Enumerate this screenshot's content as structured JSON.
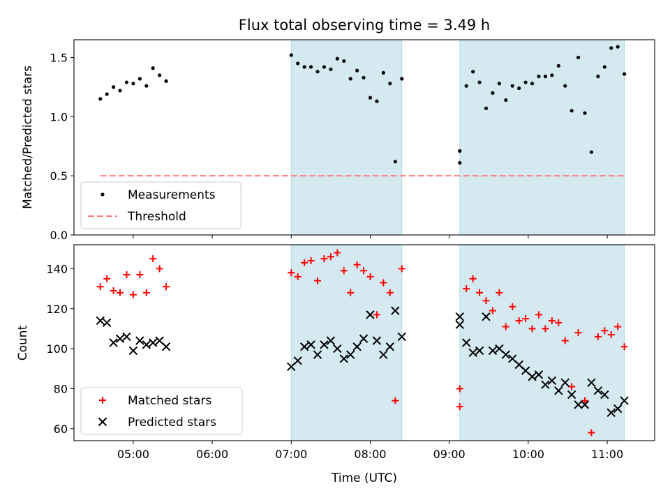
{
  "figure": {
    "title": "Flux total observing time = 3.49 h",
    "xlabel": "Time (UTC)",
    "x_ticks": [
      "05:00",
      "06:00",
      "07:00",
      "08:00",
      "09:00",
      "10:00",
      "11:00"
    ],
    "shaded_intervals": [
      [
        "07:00",
        "08:24"
      ],
      [
        "09:08",
        "11:13"
      ]
    ],
    "shade_color": "#d4eaf0"
  },
  "chart_data": [
    {
      "type": "scatter",
      "ylabel": "Matched/Predicted stars",
      "ylim": [
        0,
        1.65
      ],
      "y_ticks": [
        "0.0",
        "0.5",
        "1.0",
        "1.5"
      ],
      "legend": {
        "position": "lower-left",
        "entries": [
          {
            "label": "Measurements",
            "marker": "dot",
            "color": "#000000"
          },
          {
            "label": "Threshold",
            "marker": "dashed-line",
            "color": "#ff7f7f"
          }
        ]
      },
      "threshold": {
        "value": 0.5,
        "x_range": [
          "04:35",
          "11:13"
        ],
        "color": "#ff7f7f"
      },
      "series": [
        {
          "name": "Measurements",
          "color": "#000000",
          "points": [
            [
              "04:35",
              1.15
            ],
            [
              "04:40",
              1.19
            ],
            [
              "04:45",
              1.25
            ],
            [
              "04:50",
              1.22
            ],
            [
              "04:55",
              1.29
            ],
            [
              "05:00",
              1.28
            ],
            [
              "05:05",
              1.32
            ],
            [
              "05:10",
              1.26
            ],
            [
              "05:15",
              1.41
            ],
            [
              "05:20",
              1.35
            ],
            [
              "05:25",
              1.3
            ],
            [
              "07:00",
              1.52
            ],
            [
              "07:05",
              1.45
            ],
            [
              "07:10",
              1.42
            ],
            [
              "07:15",
              1.42
            ],
            [
              "07:20",
              1.38
            ],
            [
              "07:25",
              1.42
            ],
            [
              "07:30",
              1.4
            ],
            [
              "07:35",
              1.49
            ],
            [
              "07:40",
              1.47
            ],
            [
              "07:45",
              1.32
            ],
            [
              "07:50",
              1.39
            ],
            [
              "07:55",
              1.33
            ],
            [
              "08:00",
              1.16
            ],
            [
              "08:05",
              1.13
            ],
            [
              "08:10",
              1.37
            ],
            [
              "08:15",
              1.28
            ],
            [
              "08:19",
              0.62
            ],
            [
              "08:24",
              1.32
            ],
            [
              "09:08",
              0.71
            ],
            [
              "09:08",
              0.61
            ],
            [
              "09:13",
              1.26
            ],
            [
              "09:18",
              1.38
            ],
            [
              "09:23",
              1.29
            ],
            [
              "09:28",
              1.07
            ],
            [
              "09:33",
              1.2
            ],
            [
              "09:38",
              1.28
            ],
            [
              "09:43",
              1.14
            ],
            [
              "09:48",
              1.26
            ],
            [
              "09:53",
              1.24
            ],
            [
              "09:58",
              1.29
            ],
            [
              "10:03",
              1.28
            ],
            [
              "10:08",
              1.34
            ],
            [
              "10:13",
              1.34
            ],
            [
              "10:18",
              1.35
            ],
            [
              "10:23",
              1.43
            ],
            [
              "10:28",
              1.26
            ],
            [
              "10:33",
              1.05
            ],
            [
              "10:38",
              1.5
            ],
            [
              "10:43",
              1.03
            ],
            [
              "10:48",
              0.7
            ],
            [
              "10:53",
              1.34
            ],
            [
              "10:58",
              1.42
            ],
            [
              "11:03",
              1.58
            ],
            [
              "11:08",
              1.59
            ],
            [
              "11:13",
              1.36
            ]
          ]
        }
      ]
    },
    {
      "type": "scatter",
      "ylabel": "Count",
      "ylim": [
        54,
        152
      ],
      "y_ticks": [
        "60",
        "80",
        "100",
        "120",
        "140"
      ],
      "legend": {
        "position": "lower-left",
        "entries": [
          {
            "label": "Matched stars",
            "marker": "plus",
            "color": "#ff0000"
          },
          {
            "label": "Predicted stars",
            "marker": "x",
            "color": "#000000"
          }
        ]
      },
      "series": [
        {
          "name": "Matched stars",
          "marker": "plus",
          "color": "#ff0000",
          "points": [
            [
              "04:35",
              131
            ],
            [
              "04:40",
              135
            ],
            [
              "04:45",
              129
            ],
            [
              "04:50",
              128
            ],
            [
              "04:55",
              137
            ],
            [
              "05:00",
              127
            ],
            [
              "05:05",
              137
            ],
            [
              "05:10",
              128
            ],
            [
              "05:15",
              145
            ],
            [
              "05:20",
              140
            ],
            [
              "05:25",
              131
            ],
            [
              "07:00",
              138
            ],
            [
              "07:05",
              136
            ],
            [
              "07:10",
              143
            ],
            [
              "07:15",
              144
            ],
            [
              "07:20",
              134
            ],
            [
              "07:25",
              145
            ],
            [
              "07:30",
              146
            ],
            [
              "07:35",
              148
            ],
            [
              "07:40",
              139
            ],
            [
              "07:45",
              128
            ],
            [
              "07:50",
              142
            ],
            [
              "07:55",
              139
            ],
            [
              "08:00",
              136
            ],
            [
              "08:05",
              117
            ],
            [
              "08:10",
              133
            ],
            [
              "08:15",
              128
            ],
            [
              "08:19",
              74
            ],
            [
              "08:24",
              140
            ],
            [
              "09:08",
              80
            ],
            [
              "09:08",
              71
            ],
            [
              "09:13",
              130
            ],
            [
              "09:18",
              135
            ],
            [
              "09:23",
              128
            ],
            [
              "09:28",
              124
            ],
            [
              "09:33",
              119
            ],
            [
              "09:38",
              128
            ],
            [
              "09:43",
              111
            ],
            [
              "09:48",
              121
            ],
            [
              "09:53",
              114
            ],
            [
              "09:58",
              115
            ],
            [
              "10:03",
              110
            ],
            [
              "10:08",
              117
            ],
            [
              "10:13",
              110
            ],
            [
              "10:18",
              114
            ],
            [
              "10:23",
              113
            ],
            [
              "10:28",
              104
            ],
            [
              "10:33",
              81
            ],
            [
              "10:38",
              108
            ],
            [
              "10:43",
              74
            ],
            [
              "10:48",
              58
            ],
            [
              "10:53",
              106
            ],
            [
              "10:58",
              109
            ],
            [
              "11:03",
              107
            ],
            [
              "11:08",
              111
            ],
            [
              "11:13",
              101
            ]
          ]
        },
        {
          "name": "Predicted stars",
          "marker": "x",
          "color": "#000000",
          "points": [
            [
              "04:35",
              114
            ],
            [
              "04:40",
              113
            ],
            [
              "04:45",
              103
            ],
            [
              "04:50",
              105
            ],
            [
              "04:55",
              106
            ],
            [
              "05:00",
              99
            ],
            [
              "05:05",
              104
            ],
            [
              "05:10",
              102
            ],
            [
              "05:15",
              103
            ],
            [
              "05:20",
              104
            ],
            [
              "05:25",
              101
            ],
            [
              "07:00",
              91
            ],
            [
              "07:05",
              94
            ],
            [
              "07:10",
              101
            ],
            [
              "07:15",
              102
            ],
            [
              "07:20",
              97
            ],
            [
              "07:25",
              102
            ],
            [
              "07:30",
              104
            ],
            [
              "07:35",
              100
            ],
            [
              "07:40",
              95
            ],
            [
              "07:45",
              97
            ],
            [
              "07:50",
              101
            ],
            [
              "07:55",
              105
            ],
            [
              "08:00",
              117
            ],
            [
              "08:05",
              104
            ],
            [
              "08:10",
              97
            ],
            [
              "08:15",
              101
            ],
            [
              "08:19",
              119
            ],
            [
              "08:24",
              106
            ],
            [
              "09:08",
              116
            ],
            [
              "09:08",
              112
            ],
            [
              "09:13",
              103
            ],
            [
              "09:18",
              98
            ],
            [
              "09:23",
              99
            ],
            [
              "09:28",
              116
            ],
            [
              "09:33",
              99
            ],
            [
              "09:38",
              100
            ],
            [
              "09:43",
              97
            ],
            [
              "09:48",
              95
            ],
            [
              "09:53",
              92
            ],
            [
              "09:58",
              89
            ],
            [
              "10:03",
              86
            ],
            [
              "10:08",
              87
            ],
            [
              "10:13",
              82
            ],
            [
              "10:18",
              84
            ],
            [
              "10:23",
              79
            ],
            [
              "10:28",
              83
            ],
            [
              "10:33",
              77
            ],
            [
              "10:38",
              72
            ],
            [
              "10:43",
              72
            ],
            [
              "10:48",
              83
            ],
            [
              "10:53",
              79
            ],
            [
              "10:58",
              77
            ],
            [
              "11:03",
              68
            ],
            [
              "11:08",
              70
            ],
            [
              "11:13",
              74
            ]
          ]
        }
      ]
    }
  ]
}
